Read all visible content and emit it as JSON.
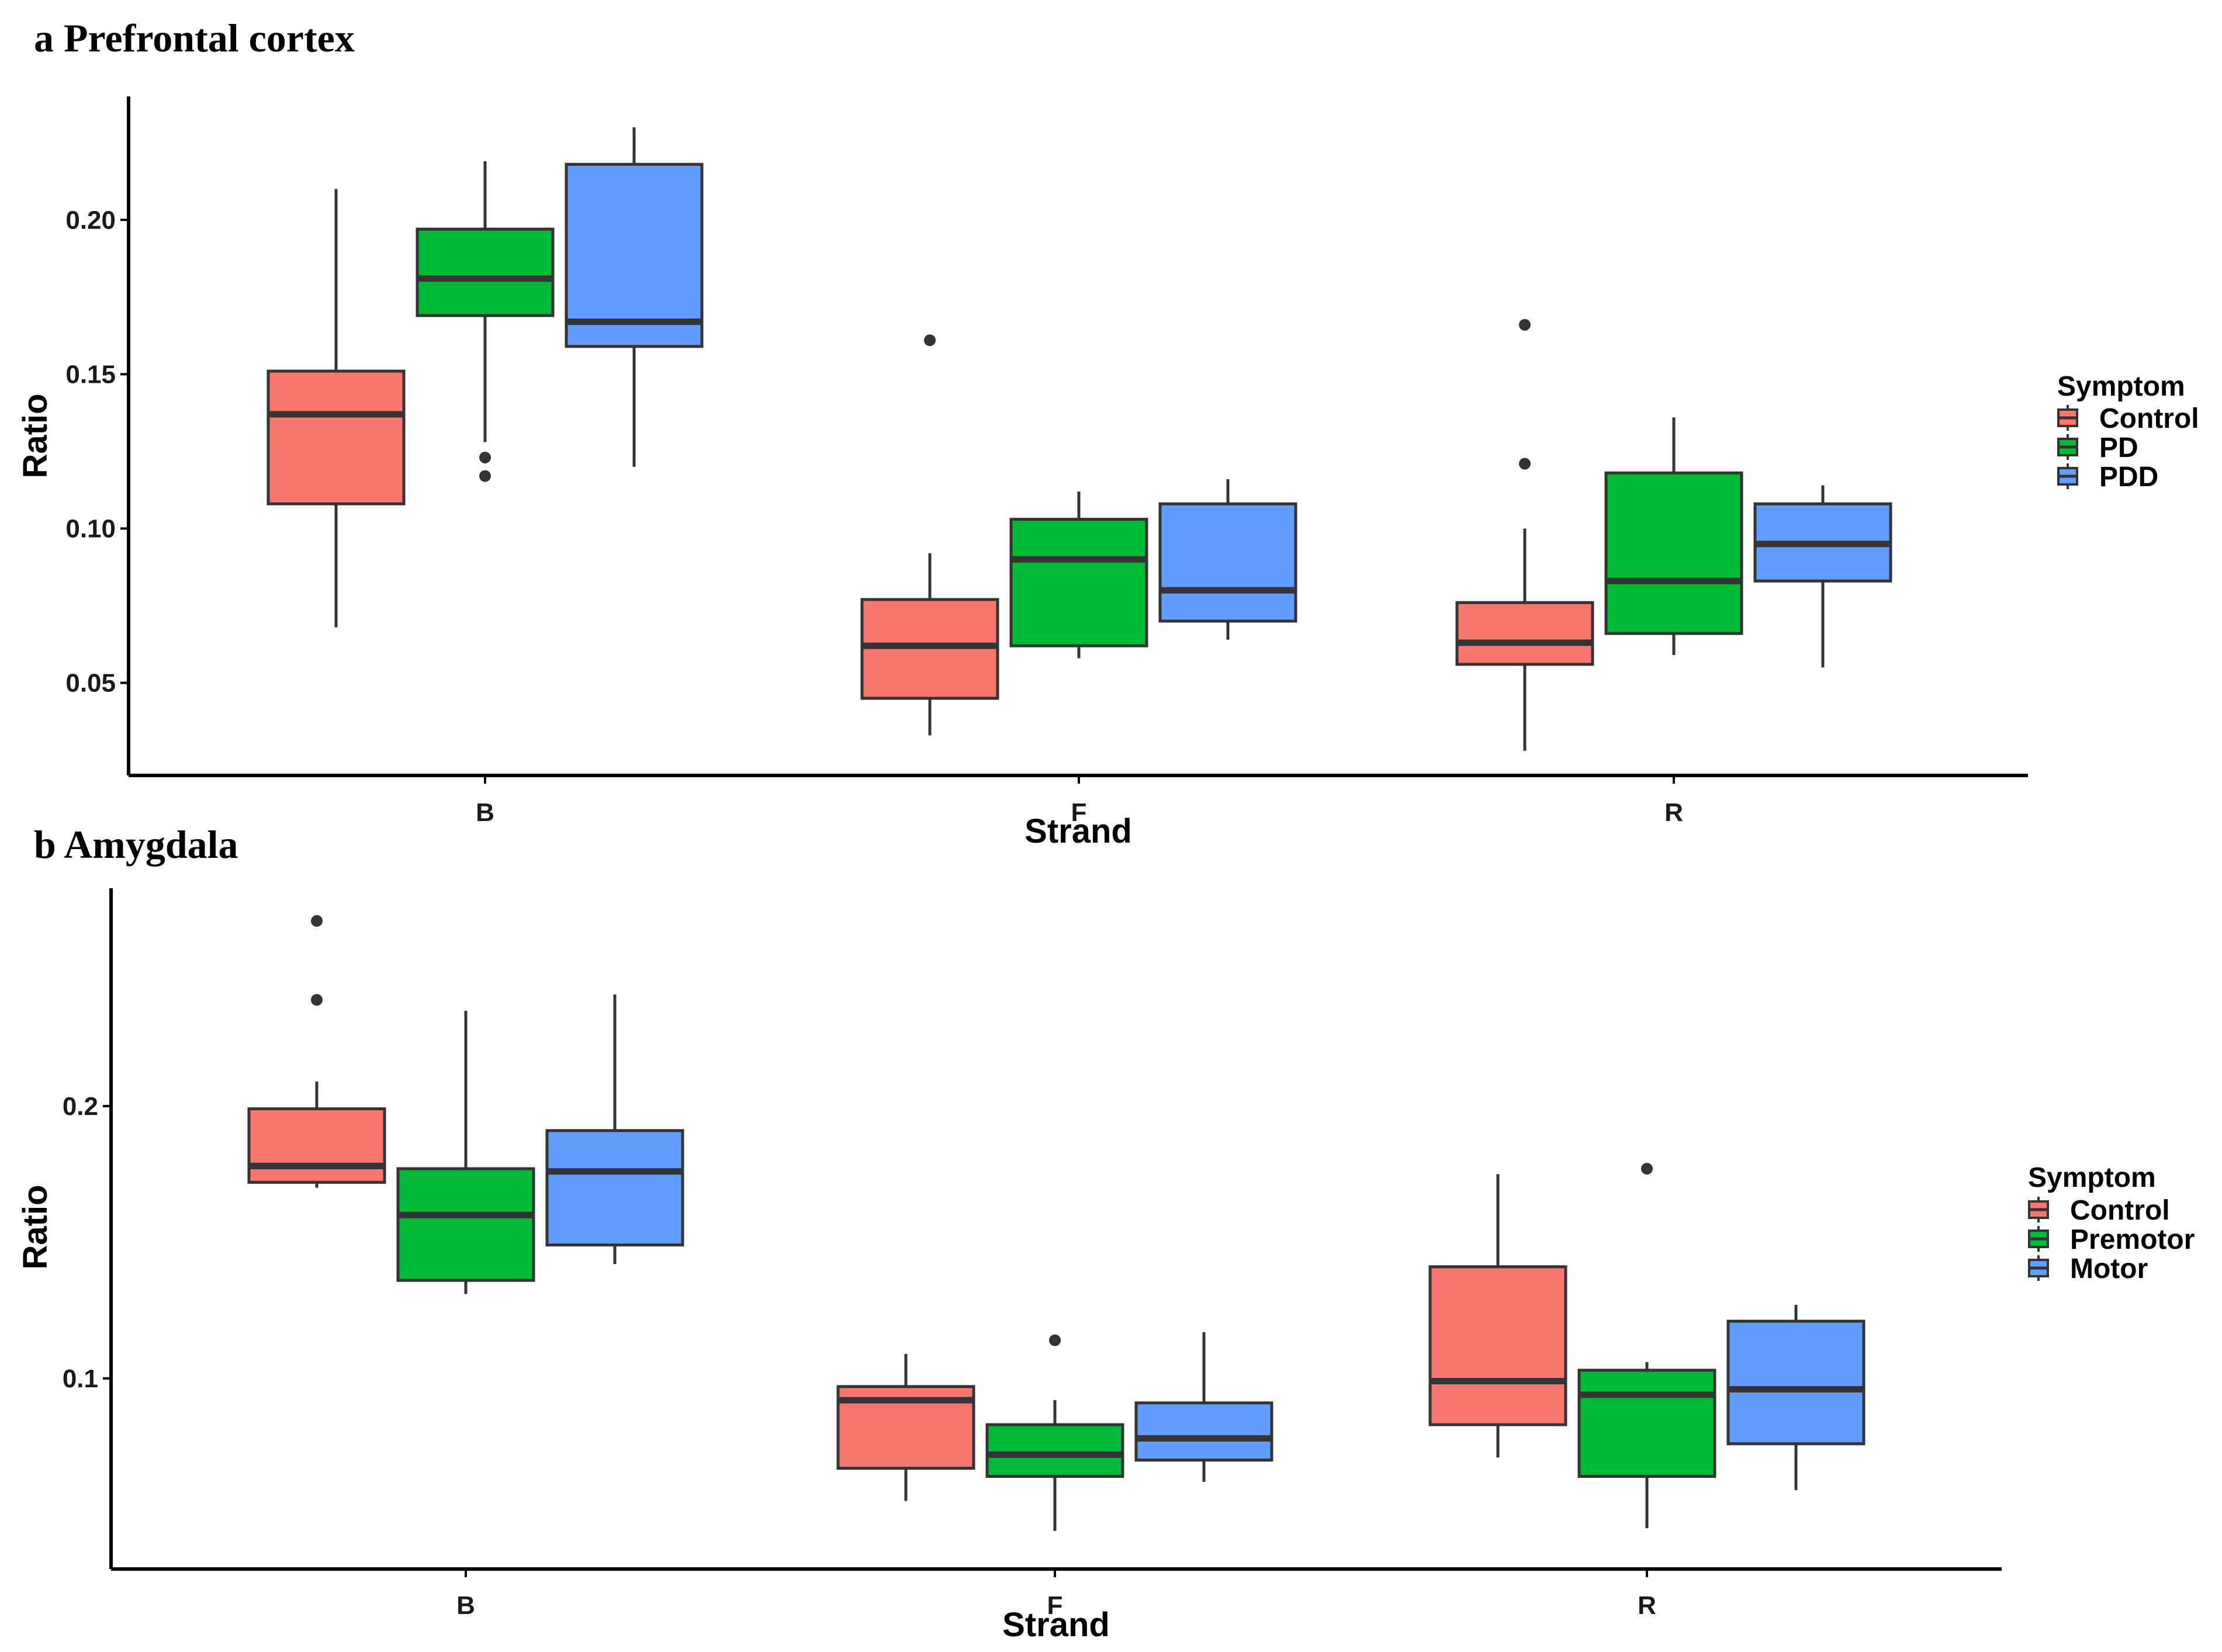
{
  "chart_data": [
    {
      "type": "box",
      "title": "a Prefrontal cortex",
      "xlabel": "Strand",
      "ylabel": "Ratio",
      "categories": [
        "B",
        "F",
        "R"
      ],
      "ylim": [
        0.02,
        0.24
      ],
      "yticks": [
        0.05,
        0.1,
        0.15,
        0.2
      ],
      "ytick_labels": [
        "0.05",
        "0.10",
        "0.15",
        "0.20"
      ],
      "legend_title": "Symptom",
      "series": [
        {
          "name": "Control",
          "color": "#f8766d",
          "boxes": [
            {
              "min": 0.068,
              "q1": 0.108,
              "median": 0.137,
              "q3": 0.151,
              "max": 0.21,
              "outliers": []
            },
            {
              "min": 0.033,
              "q1": 0.045,
              "median": 0.062,
              "q3": 0.077,
              "max": 0.092,
              "outliers": [
                0.161
              ]
            },
            {
              "min": 0.028,
              "q1": 0.056,
              "median": 0.063,
              "q3": 0.076,
              "max": 0.1,
              "outliers": [
                0.121,
                0.166
              ]
            }
          ]
        },
        {
          "name": "PD",
          "color": "#00ba38",
          "boxes": [
            {
              "min": 0.128,
              "q1": 0.169,
              "median": 0.181,
              "q3": 0.197,
              "max": 0.219,
              "outliers": [
                0.123,
                0.117
              ]
            },
            {
              "min": 0.058,
              "q1": 0.062,
              "median": 0.09,
              "q3": 0.103,
              "max": 0.112,
              "outliers": []
            },
            {
              "min": 0.059,
              "q1": 0.066,
              "median": 0.083,
              "q3": 0.118,
              "max": 0.136,
              "outliers": []
            }
          ]
        },
        {
          "name": "PDD",
          "color": "#619cff",
          "boxes": [
            {
              "min": 0.12,
              "q1": 0.159,
              "median": 0.167,
              "q3": 0.218,
              "max": 0.23,
              "outliers": []
            },
            {
              "min": 0.064,
              "q1": 0.07,
              "median": 0.08,
              "q3": 0.108,
              "max": 0.116,
              "outliers": []
            },
            {
              "min": 0.055,
              "q1": 0.083,
              "median": 0.095,
              "q3": 0.108,
              "max": 0.114,
              "outliers": []
            }
          ]
        }
      ]
    },
    {
      "type": "box",
      "title": "b Amygdala",
      "xlabel": "Strand",
      "ylabel": "Ratio",
      "categories": [
        "B",
        "F",
        "R"
      ],
      "ylim": [
        0.03,
        0.28
      ],
      "yticks": [
        0.1,
        0.2
      ],
      "ytick_labels": [
        "0.1",
        "0.2"
      ],
      "legend_title": "Symptom",
      "series": [
        {
          "name": "Control",
          "color": "#f8766d",
          "boxes": [
            {
              "min": 0.17,
              "q1": 0.172,
              "median": 0.178,
              "q3": 0.199,
              "max": 0.209,
              "outliers": [
                0.239,
                0.268
              ]
            },
            {
              "min": 0.055,
              "q1": 0.067,
              "median": 0.092,
              "q3": 0.097,
              "max": 0.109,
              "outliers": []
            },
            {
              "min": 0.071,
              "q1": 0.083,
              "median": 0.099,
              "q3": 0.141,
              "max": 0.175,
              "outliers": []
            }
          ]
        },
        {
          "name": "Premotor",
          "color": "#00ba38",
          "boxes": [
            {
              "min": 0.131,
              "q1": 0.136,
              "median": 0.16,
              "q3": 0.177,
              "max": 0.235,
              "outliers": []
            },
            {
              "min": 0.044,
              "q1": 0.064,
              "median": 0.072,
              "q3": 0.083,
              "max": 0.092,
              "outliers": [
                0.114
              ]
            },
            {
              "min": 0.045,
              "q1": 0.064,
              "median": 0.094,
              "q3": 0.103,
              "max": 0.106,
              "outliers": [
                0.177
              ]
            }
          ]
        },
        {
          "name": "Motor",
          "color": "#619cff",
          "boxes": [
            {
              "min": 0.142,
              "q1": 0.149,
              "median": 0.176,
              "q3": 0.191,
              "max": 0.241,
              "outliers": []
            },
            {
              "min": 0.062,
              "q1": 0.07,
              "median": 0.078,
              "q3": 0.091,
              "max": 0.117,
              "outliers": []
            },
            {
              "min": 0.059,
              "q1": 0.076,
              "median": 0.096,
              "q3": 0.121,
              "max": 0.127,
              "outliers": []
            }
          ]
        }
      ]
    }
  ]
}
